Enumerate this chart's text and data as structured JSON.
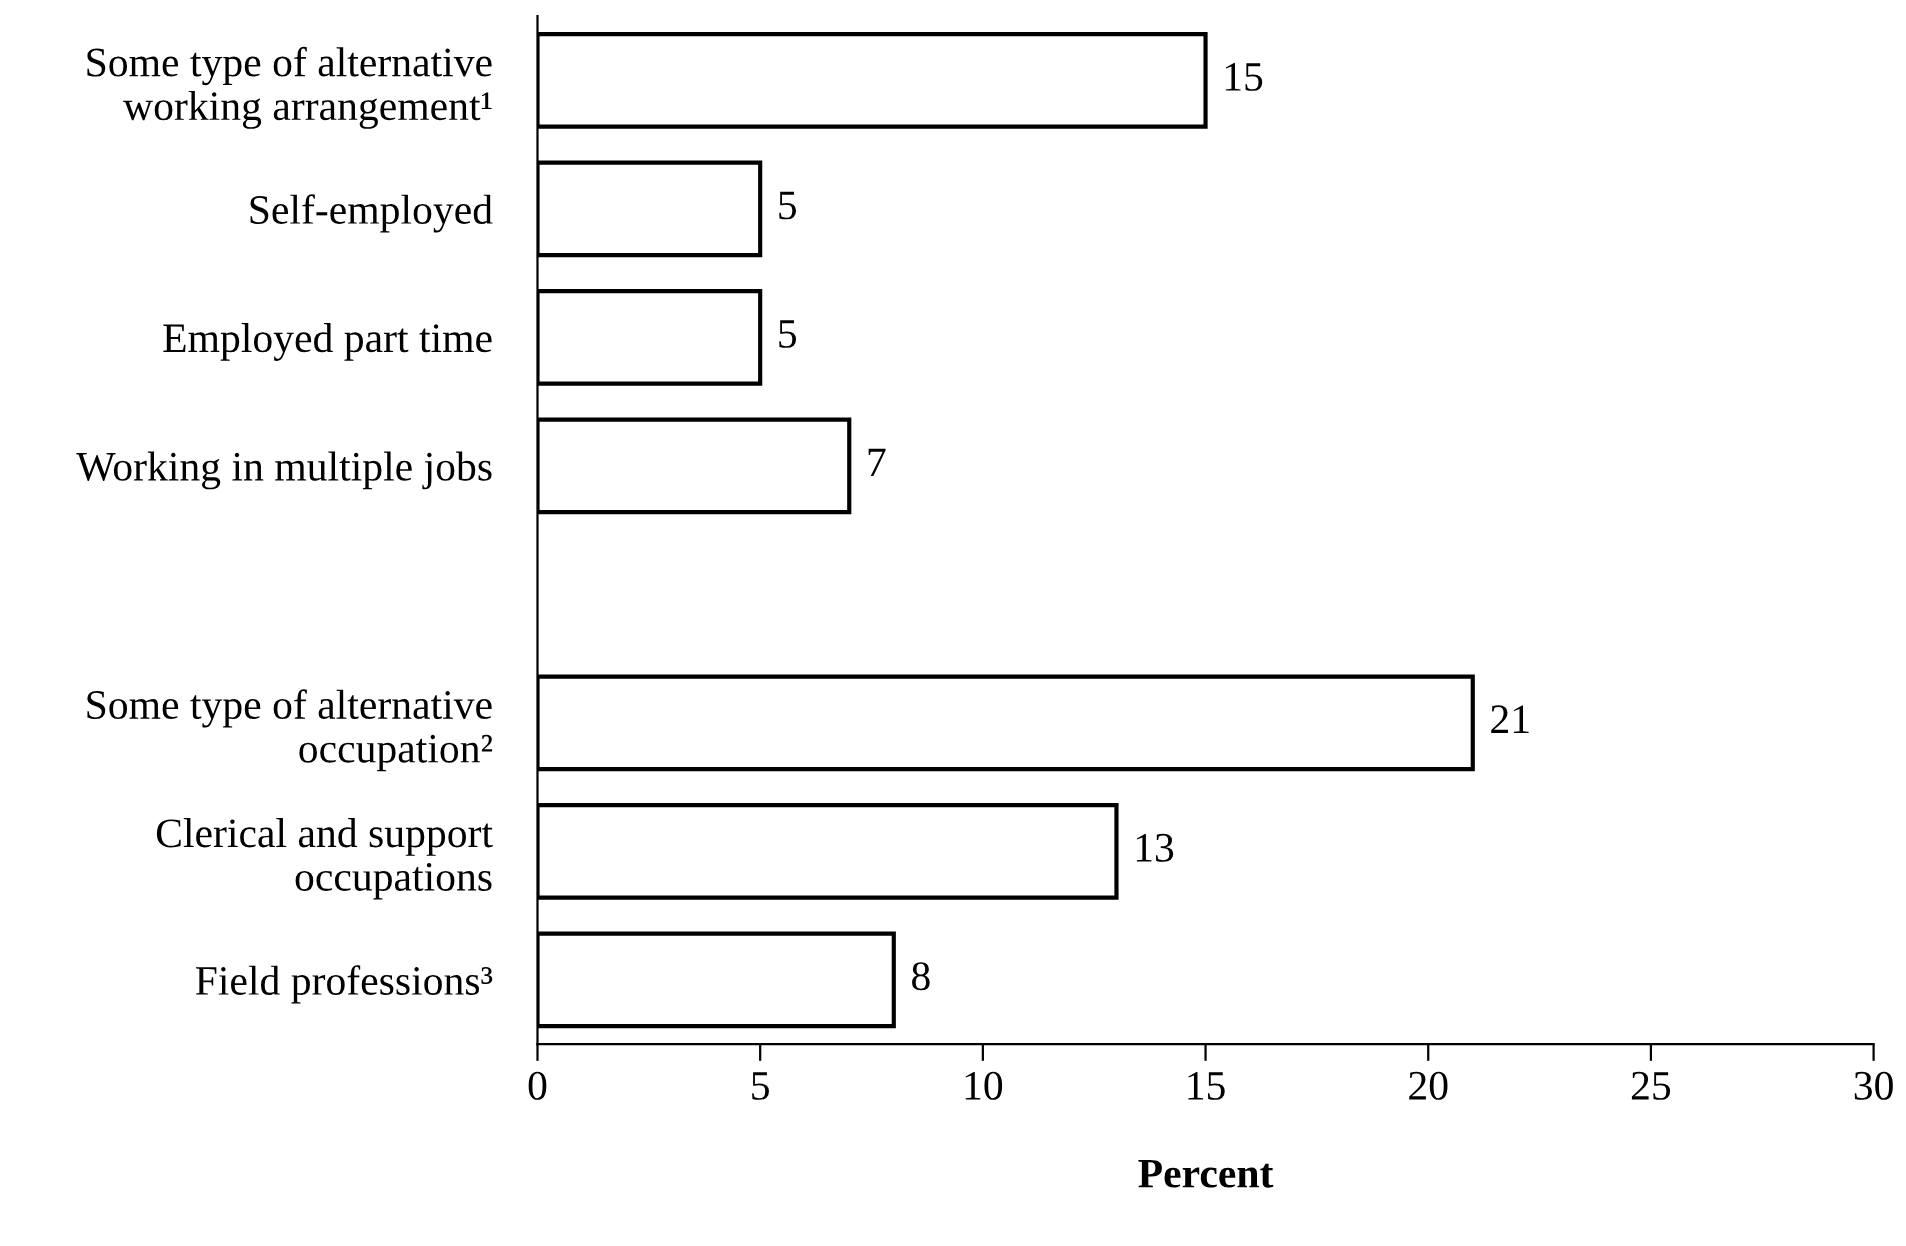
{
  "chart_data": {
    "type": "bar",
    "orientation": "horizontal",
    "categories": [
      "Some type of alternative\nworking arrangement¹",
      "Self-employed",
      "Employed part time",
      "Working in multiple jobs",
      null,
      "Some type of alternative\noccupation²",
      "Clerical and support\noccupations",
      "Field professions³"
    ],
    "values": [
      15,
      5,
      5,
      7,
      null,
      21,
      13,
      8
    ],
    "color": "#ffffff",
    "xlabel": "Percent",
    "xlim": [
      0,
      30
    ],
    "xticks": [
      0,
      5,
      10,
      15,
      20,
      25,
      30
    ],
    "data_labels": true,
    "grid": false,
    "legend": false
  }
}
